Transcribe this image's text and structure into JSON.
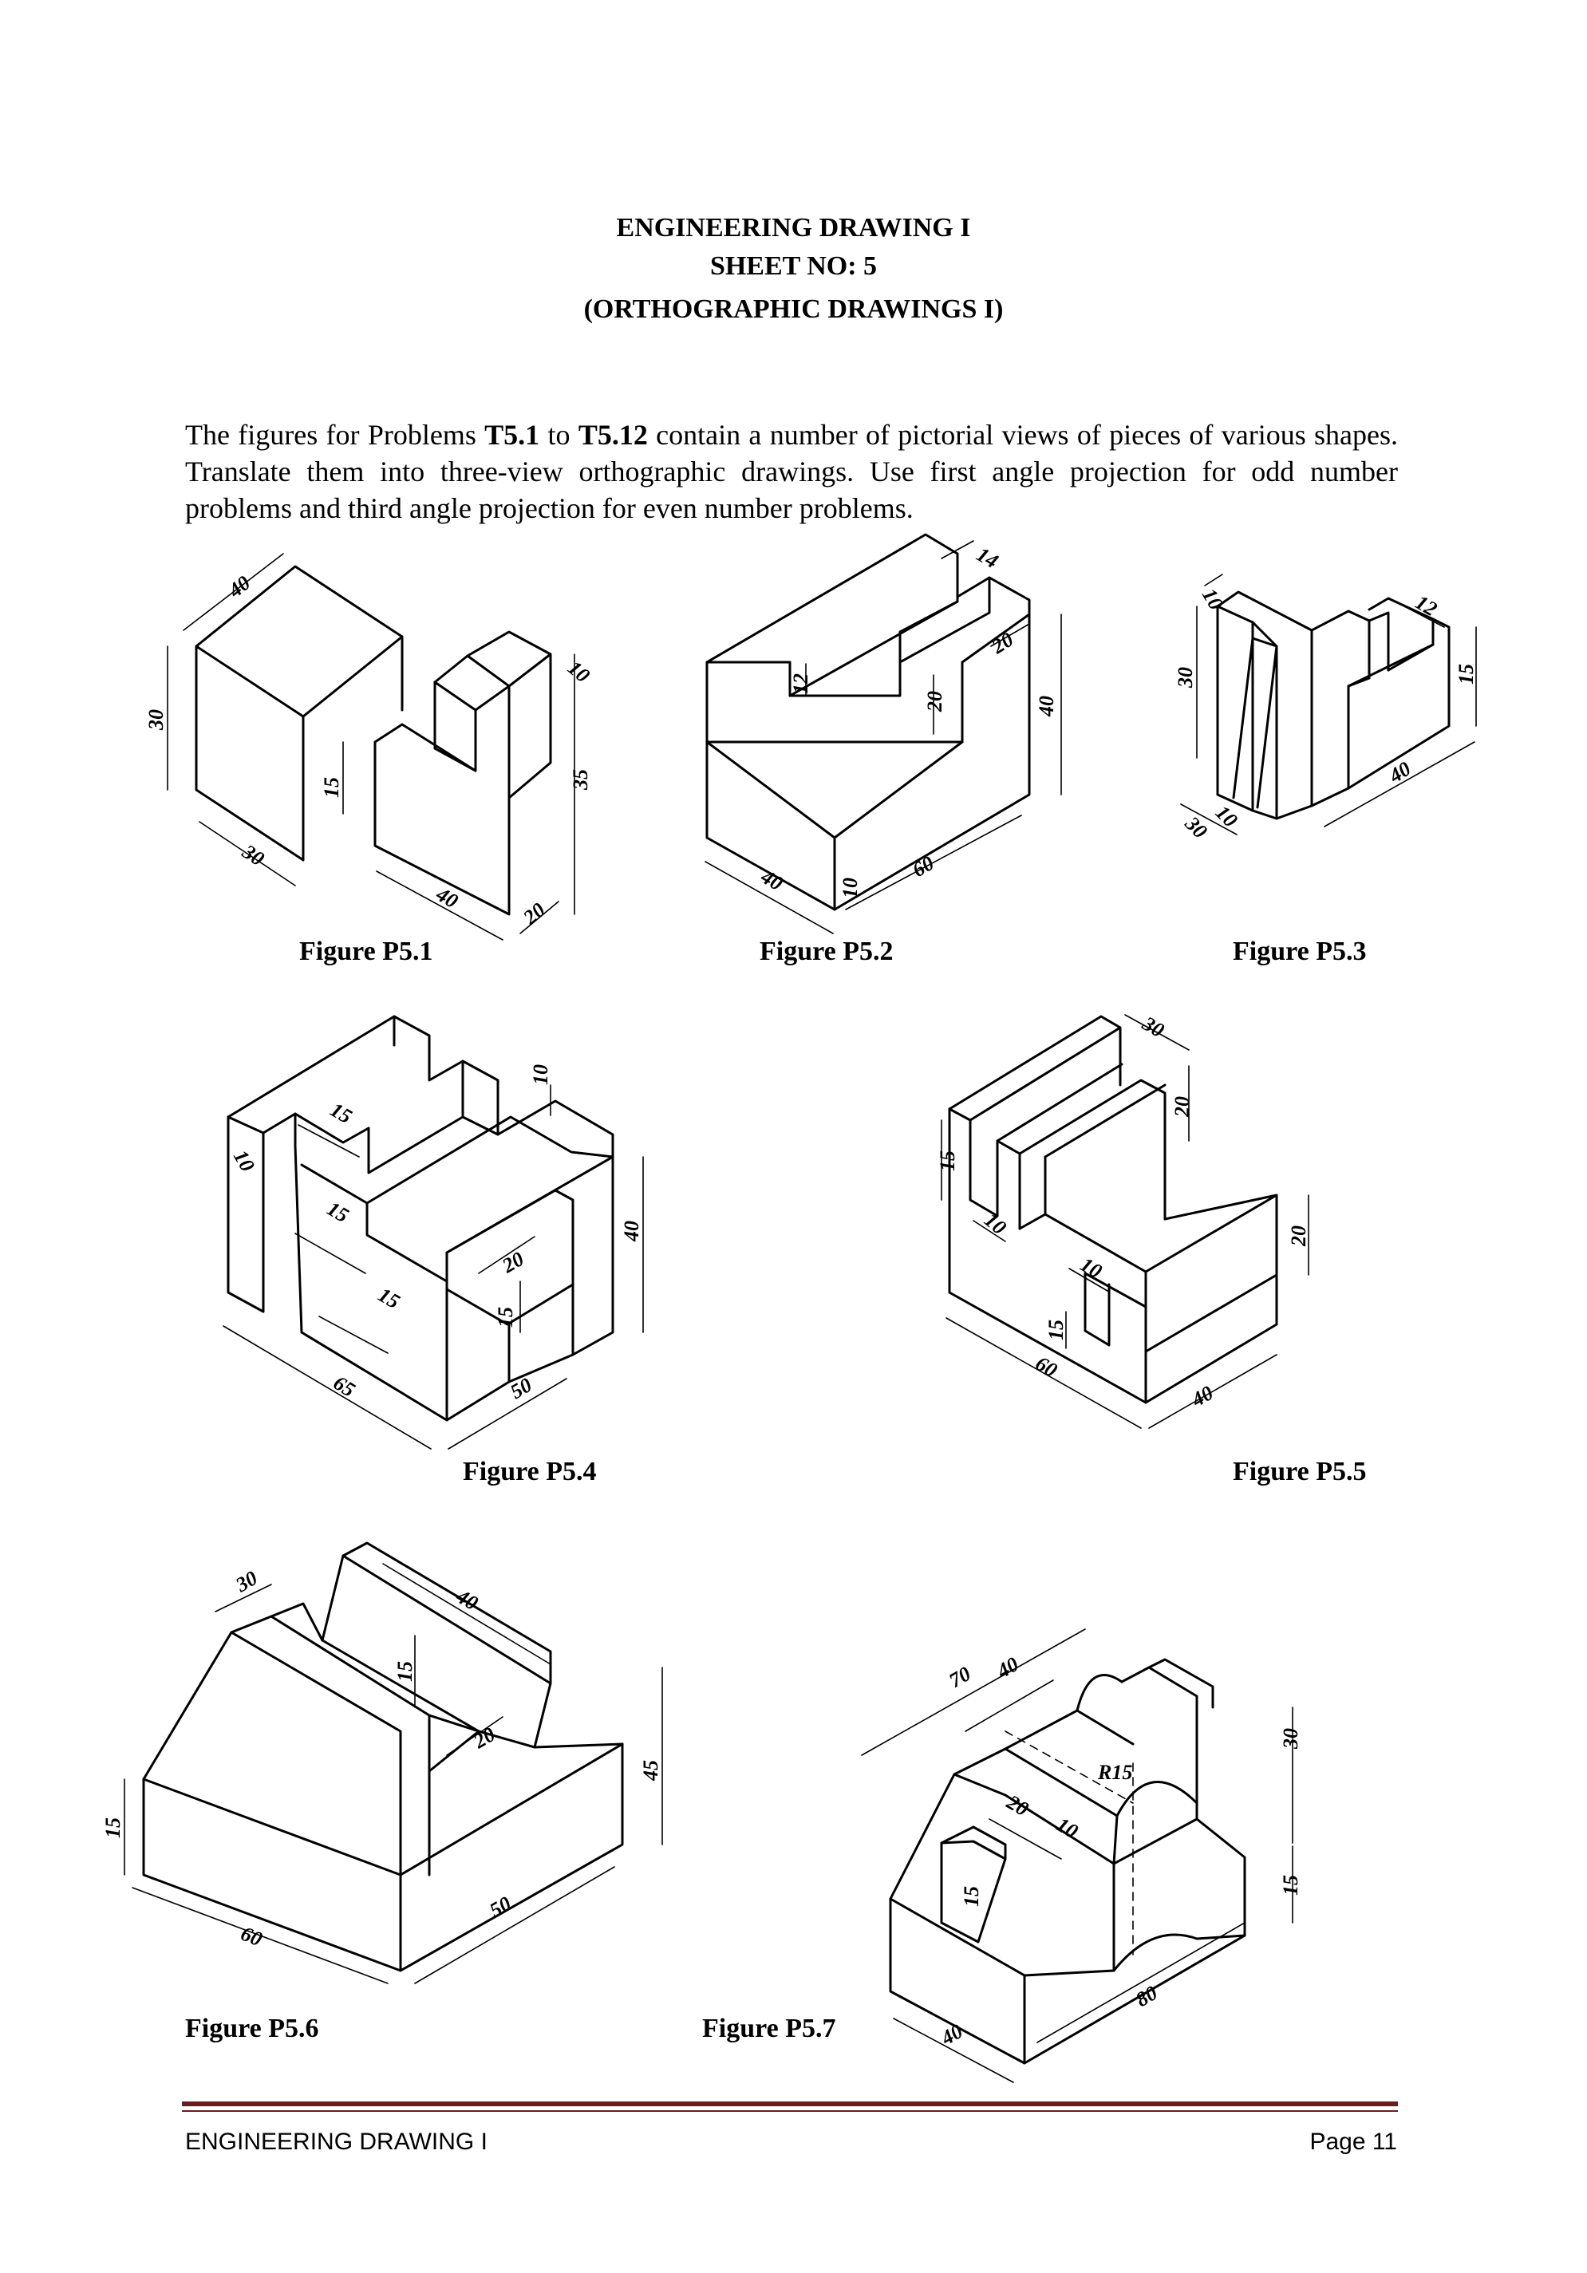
{
  "header": {
    "line1": "ENGINEERING DRAWING I",
    "line2": "SHEET NO: 5",
    "line3": "(ORTHOGRAPHIC DRAWINGS I)"
  },
  "intro": {
    "p1": "The figures for Problems ",
    "b1": "T5.1",
    "p2": " to ",
    "b2": "T5.12",
    "p3": " contain a number of pictorial views of pieces of various shapes. Translate them into three-view orthographic drawings. Use first angle projection for odd number problems and third angle projection for even number problems."
  },
  "figures": {
    "p51": {
      "caption": "Figure P5.1",
      "dims": [
        "40",
        "30",
        "30",
        "15",
        "40",
        "20",
        "35",
        "10"
      ]
    },
    "p52": {
      "caption": "Figure P5.2",
      "dims": [
        "14",
        "12",
        "20",
        "20",
        "40",
        "40",
        "10",
        "60"
      ]
    },
    "p53": {
      "caption": "Figure P5.3",
      "dims": [
        "10",
        "30",
        "12",
        "15",
        "40",
        "30",
        "10"
      ]
    },
    "p54": {
      "caption": "Figure P5.4",
      "dims": [
        "15",
        "10",
        "10",
        "15",
        "40",
        "15",
        "20",
        "15",
        "65",
        "50"
      ]
    },
    "p55": {
      "caption": "Figure P5.5",
      "dims": [
        "30",
        "20",
        "15",
        "10",
        "10",
        "20",
        "15",
        "60",
        "40"
      ]
    },
    "p56": {
      "caption": "Figure P5.6",
      "dims": [
        "30",
        "40",
        "15",
        "20",
        "15",
        "45",
        "50",
        "60"
      ]
    },
    "p57": {
      "caption": "Figure P5.7",
      "dims": [
        "70",
        "40",
        "R15",
        "30",
        "20",
        "10",
        "15",
        "15",
        "80",
        "40"
      ]
    }
  },
  "footer": {
    "left": "ENGINEERING DRAWING I",
    "right": "Page 11"
  }
}
